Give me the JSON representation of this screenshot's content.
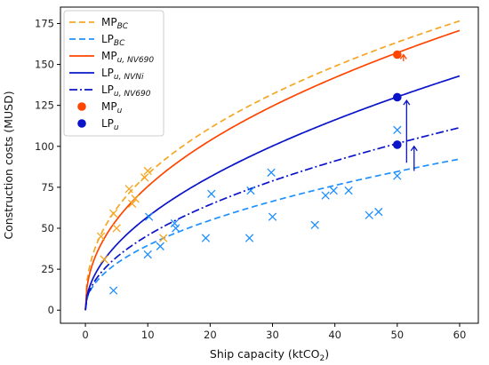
{
  "chart_data": {
    "type": "line",
    "xlabel": "Ship capacity (ktCO",
    "xlabel_sub": "2",
    "xlabel_end": ")",
    "ylabel": "Construction costs (MUSD)",
    "xlim": [
      -4,
      63
    ],
    "ylim": [
      -8,
      185
    ],
    "xticks": [
      0,
      10,
      20,
      30,
      40,
      50,
      60
    ],
    "yticks": [
      0,
      25,
      50,
      75,
      100,
      125,
      150,
      175
    ],
    "legend_position": "top-left",
    "curves": [
      {
        "key": "mp_bc",
        "label": "MP",
        "sub": "BC",
        "color": "#f5a623",
        "style": "dashed",
        "coef": 31.5,
        "exp": 0.421
      },
      {
        "key": "lp_bc",
        "label": "LP",
        "sub": "BC",
        "color": "#1e90ff",
        "style": "dashed",
        "coef": 13.3,
        "exp": 0.473
      },
      {
        "key": "mp_nv690",
        "label": "MP",
        "sub": "u, NV690",
        "color": "#ff4500",
        "style": "solid",
        "coef": 26.5,
        "exp": 0.455
      },
      {
        "key": "lp_nvni",
        "label": "LP",
        "sub": "u, NVNi",
        "color": "#0a14c8",
        "style": "solid",
        "coef": 17.5,
        "exp": 0.513
      },
      {
        "key": "lp_nv690",
        "label": "LP",
        "sub": "u, NV690",
        "color": "#0a14c8",
        "style": "dashdot",
        "coef": 14.5,
        "exp": 0.498
      }
    ],
    "points": [
      {
        "label": "MP",
        "sub": "u",
        "color": "#ff4500",
        "values": [
          [
            50,
            156
          ]
        ]
      },
      {
        "label": "LP",
        "sub": "u",
        "color": "#0a14c8",
        "values": [
          [
            50,
            130
          ],
          [
            50,
            101
          ]
        ]
      }
    ],
    "scatter_orange": [
      [
        2.5,
        45
      ],
      [
        3,
        31
      ],
      [
        4.5,
        59
      ],
      [
        5,
        50
      ],
      [
        7,
        74
      ],
      [
        7.5,
        65
      ],
      [
        8,
        68
      ],
      [
        9.5,
        81
      ],
      [
        10,
        85
      ],
      [
        12.5,
        44
      ]
    ],
    "scatter_blue": [
      [
        4.5,
        12
      ],
      [
        10,
        34
      ],
      [
        10.2,
        57
      ],
      [
        12,
        39
      ],
      [
        14.3,
        53
      ],
      [
        14.5,
        50
      ],
      [
        19.3,
        44
      ],
      [
        20.2,
        71
      ],
      [
        26.3,
        44
      ],
      [
        26.5,
        73
      ],
      [
        29.8,
        84
      ],
      [
        30,
        57
      ],
      [
        36.8,
        52
      ],
      [
        38.5,
        70
      ],
      [
        39.8,
        73
      ],
      [
        42.2,
        73
      ],
      [
        45.5,
        58
      ],
      [
        47,
        60
      ],
      [
        50,
        110
      ],
      [
        50,
        82
      ]
    ],
    "arrows": [
      {
        "x": 51.5,
        "from": 90,
        "to": 128
      },
      {
        "x": 52.7,
        "from": 85,
        "to": 100
      },
      {
        "x": 51,
        "from": 152,
        "to": 156
      }
    ],
    "colors": {
      "axis": "#000000",
      "orange": "#f5a623",
      "blue": "#1e90ff",
      "red": "#ff4500",
      "navy": "#0a14c8"
    }
  }
}
